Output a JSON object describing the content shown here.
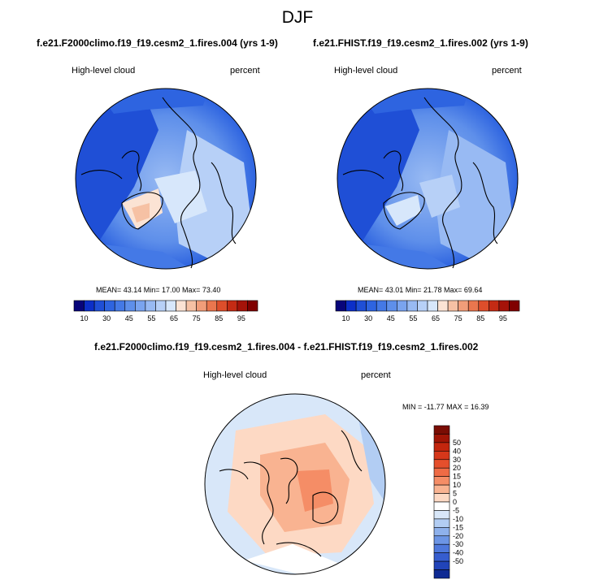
{
  "main_title": "DJF",
  "chart_data": [
    {
      "type": "heatmap",
      "projection": "north polar stereographic",
      "title": "f.e21.F2000climo.f19_f19.cesm2_1.fires.004 (yrs 1-9)",
      "left_label": "High-level cloud",
      "right_label": "percent",
      "stats": {
        "mean": 43.14,
        "min": 17.0,
        "max": 73.4
      },
      "stats_text": "MEAN=  43.14   Min=  17.00   Max=  73.40",
      "colorbar": {
        "levels": [
          5,
          10,
          20,
          25,
          30,
          40,
          45,
          50,
          55,
          60,
          65,
          70,
          75,
          80,
          85,
          90,
          95
        ],
        "tick_labels": [
          "10",
          "30",
          "45",
          "55",
          "65",
          "75",
          "85",
          "95"
        ],
        "colors": [
          "#08057a",
          "#0c2fc8",
          "#1f4fd6",
          "#2e64e0",
          "#4479e6",
          "#5e8fea",
          "#7aa4ef",
          "#98baf3",
          "#b7d0f7",
          "#d7e7fb",
          "#fbe3d4",
          "#f6c1a4",
          "#f19d79",
          "#ea764e",
          "#dd4e2b",
          "#c42b14",
          "#a51309",
          "#800000"
        ]
      }
    },
    {
      "type": "heatmap",
      "projection": "north polar stereographic",
      "title": "f.e21.FHIST.f19_f19.cesm2_1.fires.002 (yrs 1-9)",
      "left_label": "High-level cloud",
      "right_label": "percent",
      "stats": {
        "mean": 43.01,
        "min": 21.78,
        "max": 69.64
      },
      "stats_text": "MEAN=  43.01   Min=  21.78   Max=  69.64",
      "colorbar": {
        "levels": [
          5,
          10,
          20,
          25,
          30,
          40,
          45,
          50,
          55,
          60,
          65,
          70,
          75,
          80,
          85,
          90,
          95
        ],
        "tick_labels": [
          "10",
          "30",
          "45",
          "55",
          "65",
          "75",
          "85",
          "95"
        ],
        "colors": [
          "#08057a",
          "#0c2fc8",
          "#1f4fd6",
          "#2e64e0",
          "#4479e6",
          "#5e8fea",
          "#7aa4ef",
          "#98baf3",
          "#b7d0f7",
          "#d7e7fb",
          "#fbe3d4",
          "#f6c1a4",
          "#f19d79",
          "#ea764e",
          "#dd4e2b",
          "#c42b14",
          "#a51309",
          "#800000"
        ]
      }
    },
    {
      "type": "heatmap",
      "projection": "north polar stereographic",
      "title": "f.e21.F2000climo.f19_f19.cesm2_1.fires.004 - f.e21.FHIST.f19_f19.cesm2_1.fires.002",
      "left_label": "High-level cloud",
      "right_label": "percent",
      "stats": {
        "min": -11.77,
        "max": 16.39
      },
      "stats_text": "MIN = -11.77  MAX =  16.39",
      "colorbar": {
        "orientation": "vertical",
        "tick_labels": [
          "50",
          "40",
          "30",
          "20",
          "15",
          "10",
          "5",
          "0",
          "-5",
          "-10",
          "-15",
          "-20",
          "-30",
          "-40",
          "-50"
        ],
        "colors": [
          "#7a0d04",
          "#a01506",
          "#c3260e",
          "#d6371a",
          "#e54f2c",
          "#ef6b45",
          "#f58d66",
          "#f9b391",
          "#fdd9c4",
          "#ffffff",
          "#d8e7f9",
          "#b2cdf3",
          "#8eb1ec",
          "#6c95e5",
          "#4e78dc",
          "#365dcf",
          "#2144b9",
          "#0f2a93"
        ]
      }
    }
  ]
}
